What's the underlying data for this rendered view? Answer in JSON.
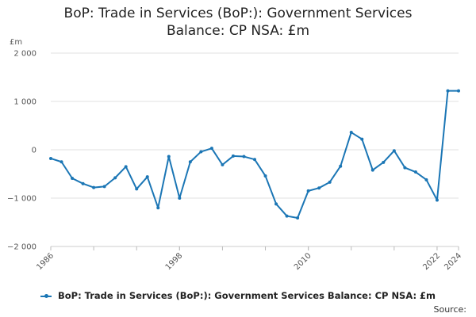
{
  "chart_data": {
    "type": "line",
    "title_line1": "BoP: Trade in Services (BoP:): Government Services",
    "title_line2": "Balance: CP NSA: £m",
    "ylabel": "£m",
    "ylim": [
      -2000,
      2000
    ],
    "yticks": [
      2000,
      1000,
      0,
      -1000,
      -2000
    ],
    "ytick_labels": [
      "2 000",
      "1 000",
      "0",
      "−1 000",
      "−2 000"
    ],
    "xlim": [
      1986,
      2024
    ],
    "xticks": [
      1986,
      1998,
      2010,
      2022,
      2024
    ],
    "xtick_labels": [
      "1986",
      "1998",
      "2010",
      "2022",
      "2024"
    ],
    "grid": true,
    "legend_position": "bottom",
    "series": [
      {
        "name": "BoP: Trade in Services (BoP:): Government Services Balance: CP NSA: £m",
        "color": "#1b76b5",
        "x": [
          1986,
          1987,
          1988,
          1989,
          1990,
          1991,
          1992,
          1993,
          1994,
          1995,
          1996,
          1997,
          1998,
          1999,
          2000,
          2001,
          2002,
          2003,
          2004,
          2005,
          2006,
          2007,
          2008,
          2009,
          2010,
          2011,
          2012,
          2013,
          2014,
          2015,
          2016,
          2017,
          2018,
          2019,
          2020,
          2021,
          2022,
          2023,
          2024
        ],
        "values": [
          -180,
          -250,
          -590,
          -700,
          -780,
          -760,
          -580,
          -350,
          -810,
          -560,
          -1200,
          -140,
          -1000,
          -250,
          -40,
          30,
          -310,
          -130,
          -140,
          -200,
          -540,
          -1120,
          -1370,
          -1410,
          -850,
          -790,
          -670,
          -340,
          360,
          220,
          -420,
          -260,
          -20,
          -370,
          -460,
          -620,
          -1040,
          1220,
          1220
        ]
      }
    ]
  },
  "legend": {
    "label": "BoP: Trade in Services (BoP:): Government Services Balance: CP NSA: £m"
  },
  "source": {
    "label": "Source:"
  }
}
